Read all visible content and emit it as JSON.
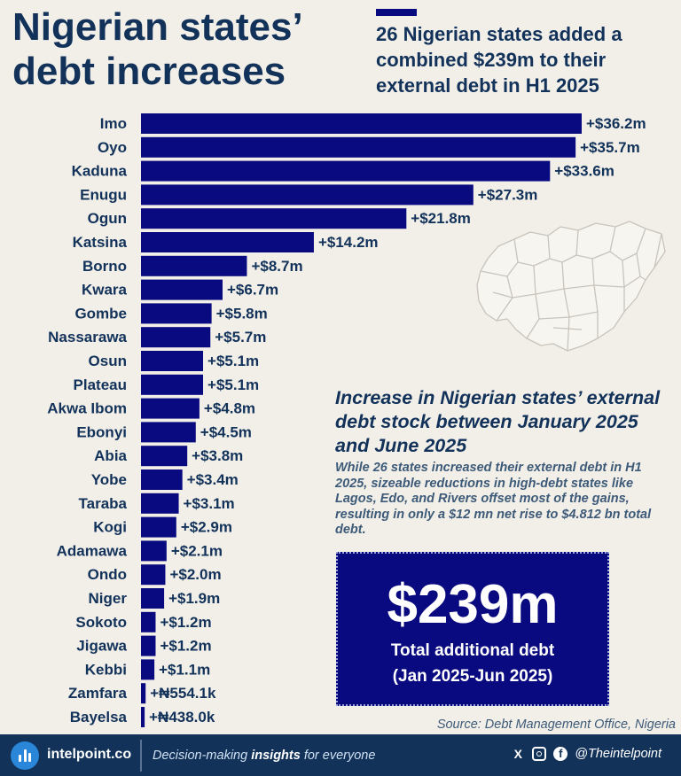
{
  "title": "Nigerian states’ debt increases",
  "subtitle": "26 Nigerian states added a combined $239m to their external debt in H1 2025",
  "chart_data": {
    "type": "bar",
    "orientation": "horizontal",
    "categories": [
      "Imo",
      "Oyo",
      "Kaduna",
      "Enugu",
      "Ogun",
      "Katsina",
      "Borno",
      "Kwara",
      "Gombe",
      "Nassarawa",
      "Osun",
      "Plateau",
      "Akwa Ibom",
      "Ebonyi",
      "Abia",
      "Yobe",
      "Taraba",
      "Kogi",
      "Adamawa",
      "Ondo",
      "Niger",
      "Sokoto",
      "Jigawa",
      "Kebbi",
      "Zamfara",
      "Bayelsa"
    ],
    "values": [
      36.2,
      35.7,
      33.6,
      27.3,
      21.8,
      14.2,
      8.7,
      6.7,
      5.8,
      5.7,
      5.1,
      5.1,
      4.8,
      4.5,
      3.8,
      3.4,
      3.1,
      2.9,
      2.1,
      2.0,
      1.9,
      1.2,
      1.2,
      1.1,
      0.38,
      0.3
    ],
    "labels": [
      "+$36.2m",
      "+$35.7m",
      "+$33.6m",
      "+$27.3m",
      "+$21.8m",
      "+$14.2m",
      "+$8.7m",
      "+$6.7m",
      "+$5.8m",
      "+$5.7m",
      "+$5.1m",
      "+$5.1m",
      "+$4.8m",
      "+$4.5m",
      "+$3.8m",
      "+$3.4m",
      "+$3.1m",
      "+$2.9m",
      "+$2.1m",
      "+$2.0m",
      "+$1.9m",
      "+$1.2m",
      "+$1.2m",
      "+$1.1m",
      "+₦554.1k",
      "+₦438.0k"
    ],
    "xlim": [
      0,
      36.2
    ],
    "grid": false,
    "bar_color": "#0a0a80"
  },
  "info": {
    "heading": "Increase in Nigerian states’ external debt stock between January 2025 and June 2025",
    "body": "While 26 states increased their external debt in H1 2025, sizeable reductions in high-debt states like Lagos, Edo, and Rivers offset most of the gains, resulting in only a $12 mn net rise to $4.812 bn total debt."
  },
  "highlight": {
    "value": "$239m",
    "label_line1": "Total additional debt",
    "label_line2": "(Jan 2025-Jun 2025)"
  },
  "source": "Source: Debt Management Office, Nigeria",
  "footer": {
    "brand": "intelpoint.co",
    "tagline_pre": "Decision-making ",
    "tagline_bold": "insights",
    "tagline_post": " for everyone",
    "x_icon": "X",
    "fb_icon": "f",
    "handle": "@Theintelpoint"
  },
  "colors": {
    "navy": "#12325a",
    "bar": "#0a0a80",
    "background": "#f2efe9"
  }
}
